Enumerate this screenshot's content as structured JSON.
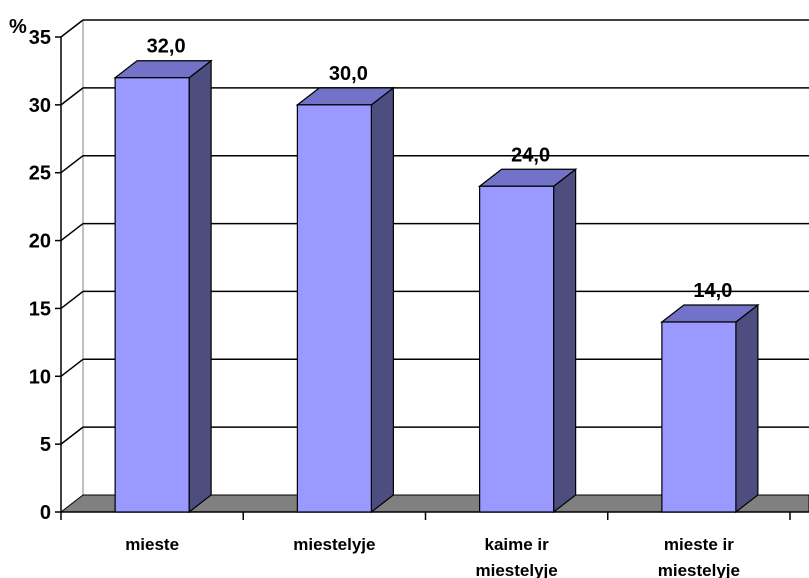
{
  "chart_data": {
    "type": "bar",
    "title": "",
    "ylabel": "%",
    "xlabel": "",
    "categories": [
      [
        "mieste"
      ],
      [
        "miestelyje"
      ],
      [
        "kaime ir",
        "miestelyje"
      ],
      [
        "mieste ir",
        "miestelyje"
      ]
    ],
    "values": [
      32.0,
      30.0,
      24.0,
      14.0
    ],
    "data_labels": [
      "32,0",
      "30,0",
      "24,0",
      "14,0"
    ],
    "y_ticks": [
      "0",
      "5",
      "10",
      "15",
      "20",
      "25",
      "30",
      "35"
    ],
    "ylim": [
      0,
      35
    ],
    "grid": true,
    "style": "3d-column",
    "colors": {
      "bar_front": "#9999ff",
      "bar_side": "#4d4d80",
      "bar_top": "#7272c8",
      "floor": "#808080",
      "grid": "#000000"
    }
  }
}
